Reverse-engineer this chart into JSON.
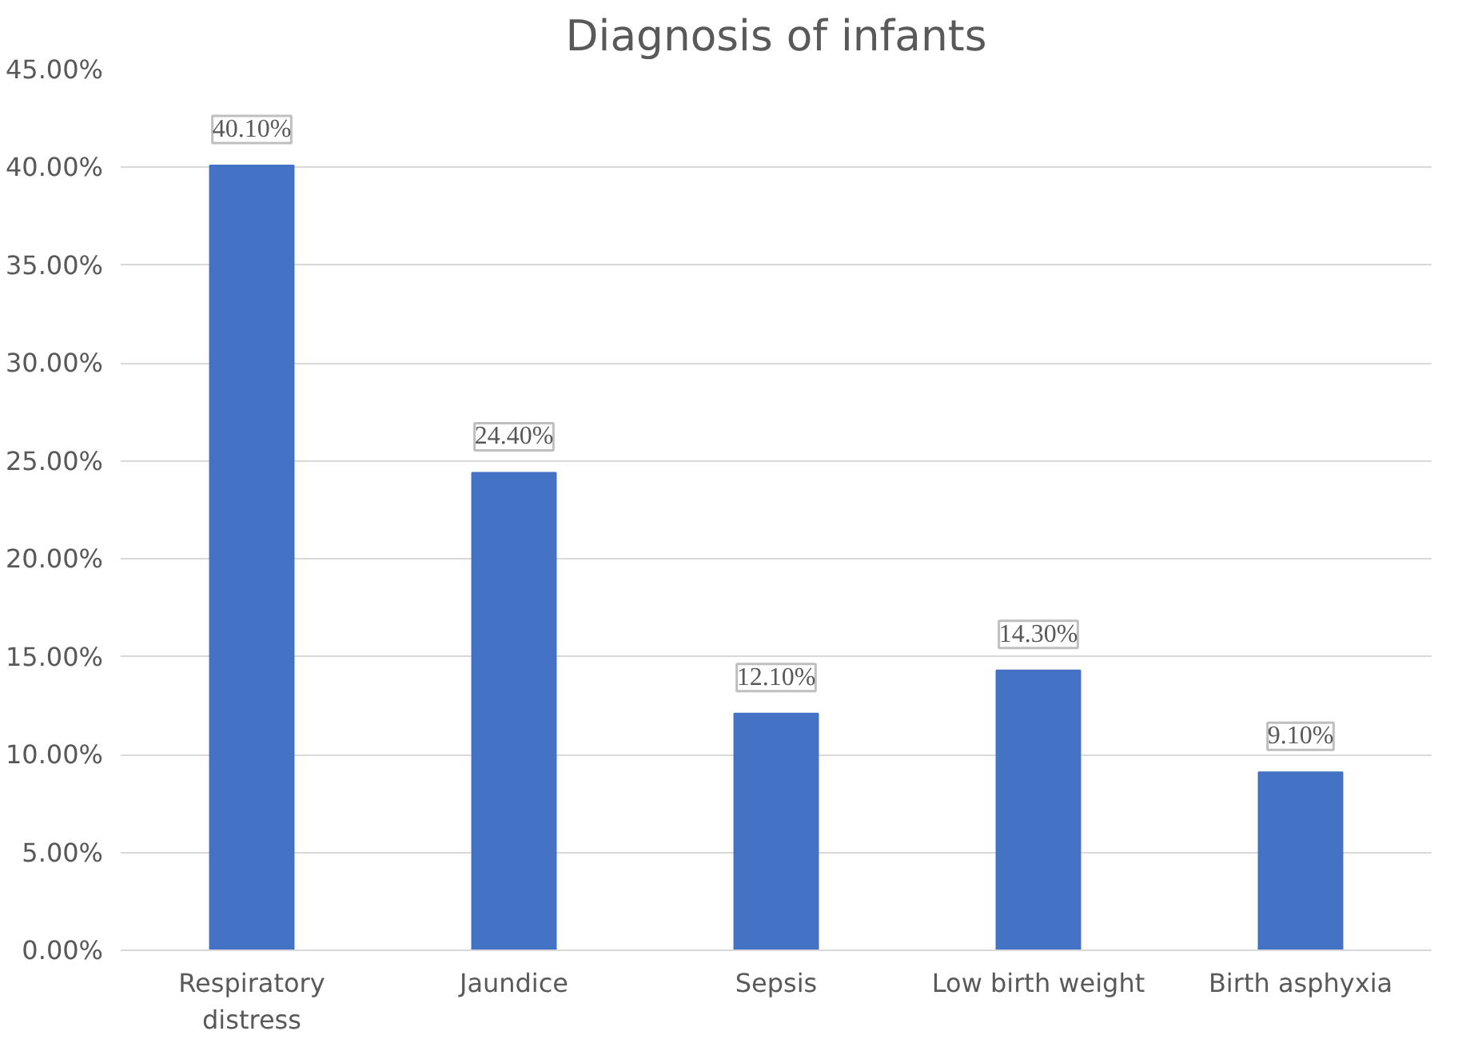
{
  "chart_data": {
    "type": "bar",
    "title": "Diagnosis of infants",
    "categories": [
      "Respiratory\ndistress",
      "Jaundice",
      "Sepsis",
      "Low birth weight",
      "Birth asphyxia"
    ],
    "values": [
      40.1,
      24.4,
      12.1,
      14.3,
      9.1
    ],
    "value_labels": [
      "40.10%",
      "24.40%",
      "12.10%",
      "14.30%",
      "9.10%"
    ],
    "color": "#4472c4",
    "ylim": [
      0,
      45
    ],
    "yticks": [
      {
        "value": 0,
        "label": "0.00%"
      },
      {
        "value": 5,
        "label": "5.00%"
      },
      {
        "value": 10,
        "label": "10.00%"
      },
      {
        "value": 15,
        "label": "15.00%"
      },
      {
        "value": 20,
        "label": "20.00%"
      },
      {
        "value": 25,
        "label": "25.00%"
      },
      {
        "value": 30,
        "label": "30.00%"
      },
      {
        "value": 35,
        "label": "35.00%"
      },
      {
        "value": 40,
        "label": "40.00%"
      },
      {
        "value": 45,
        "label": "45.00%"
      }
    ],
    "grid": "y"
  }
}
